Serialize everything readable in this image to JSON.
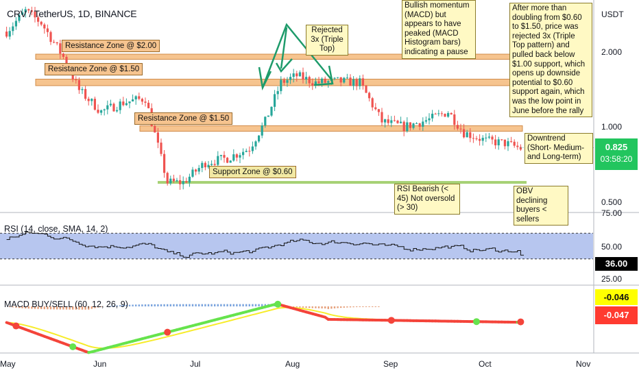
{
  "header": {
    "symbol": "CRV / TetherUS, 1D, BINANCE",
    "currency": "USDT"
  },
  "price_axis": {
    "ticks": [
      "2.000",
      "1.000",
      "0.500"
    ],
    "last_price": "0.825",
    "countdown": "03:58:20"
  },
  "rsi_pane": {
    "label": "RSI (14, close, SMA, 14, 2)",
    "ticks": [
      "75.00",
      "50.00",
      "25.00"
    ],
    "value": "36.00"
  },
  "macd_pane": {
    "label": "MACD BUY/SELL (60, 12, 26, 9)",
    "value_top": "-0.046",
    "value_bottom": "-0.047"
  },
  "time_axis": {
    "labels": [
      "May",
      "Jun",
      "Jul",
      "Aug",
      "Sep",
      "Oct",
      "Nov"
    ]
  },
  "zones": [
    {
      "label": "Resistance Zone @ $2.00"
    },
    {
      "label": "Resistance Zone @ $1.50"
    },
    {
      "label": "Resistance Zone @ $1.50"
    },
    {
      "label": "Support Zone @ $0.60"
    }
  ],
  "annotations": {
    "rejected": "Rejected 3x (Triple Top)",
    "macd_note": "Bullish momentum (MACD) but appears to have peaked (MACD Histogram bars) indicating a pause",
    "rejection_note": "After more than doubling from $0.60 to $1.50, price was rejected 3x (Triple Top pattern) and pulled back below $1.00 support, which opens up downside potential to $0.60 support again, which was the low point in June before the rally",
    "downtrend": "Downtrend (Short- Medium- and Long-term)",
    "rsi_note": "RSI Bearish (< 45) Not oversold (> 30)",
    "obv_note": "OBV declining buyers < sellers"
  },
  "colors": {
    "up": "#26a69a",
    "down": "#ef5350",
    "zone_fill": "#f6c48f",
    "support_line": "#9ccc65",
    "rsi_band": "#b3c3ee",
    "macd_green": "#66e34d",
    "macd_red": "#f4443a",
    "signal_yellow": "#f7ec2a",
    "arrow_green": "#1e9b6b",
    "badge_green": "#22c55e",
    "badge_black": "#000000",
    "badge_yellow": "#ffff00",
    "badge_red": "#ff3b30"
  },
  "chart_data": {
    "type": "candlestick",
    "symbol": "CRV / TetherUS",
    "interval": "1D",
    "y_scale": "log",
    "ylim": [
      0.45,
      3.2
    ],
    "resistance_levels": [
      2.0,
      1.5,
      1.0
    ],
    "support_levels": [
      0.6
    ],
    "last_close": 0.825,
    "rsi_last": 36.0,
    "macd_last": -0.046,
    "macd_signal_last": -0.047,
    "price_path_approx": {
      "dates": [
        "2021-05-01",
        "2021-05-07",
        "2021-05-12",
        "2021-05-19",
        "2021-05-24",
        "2021-05-31",
        "2021-06-07",
        "2021-06-14",
        "2021-06-21",
        "2021-06-26",
        "2021-07-03",
        "2021-07-10",
        "2021-07-17",
        "2021-07-22",
        "2021-07-27",
        "2021-08-01",
        "2021-08-07",
        "2021-08-14",
        "2021-08-21",
        "2021-08-28",
        "2021-09-04",
        "2021-09-12",
        "2021-09-18",
        "2021-09-23",
        "2021-09-30",
        "2021-10-06",
        "2021-10-11"
      ],
      "close": [
        2.4,
        2.9,
        2.6,
        1.9,
        1.4,
        1.15,
        1.25,
        1.3,
        0.6,
        0.6,
        0.72,
        0.75,
        0.82,
        1.05,
        1.5,
        1.6,
        1.5,
        1.52,
        1.5,
        1.05,
        1.0,
        1.07,
        1.15,
        0.95,
        0.88,
        0.86,
        0.82
      ]
    }
  }
}
